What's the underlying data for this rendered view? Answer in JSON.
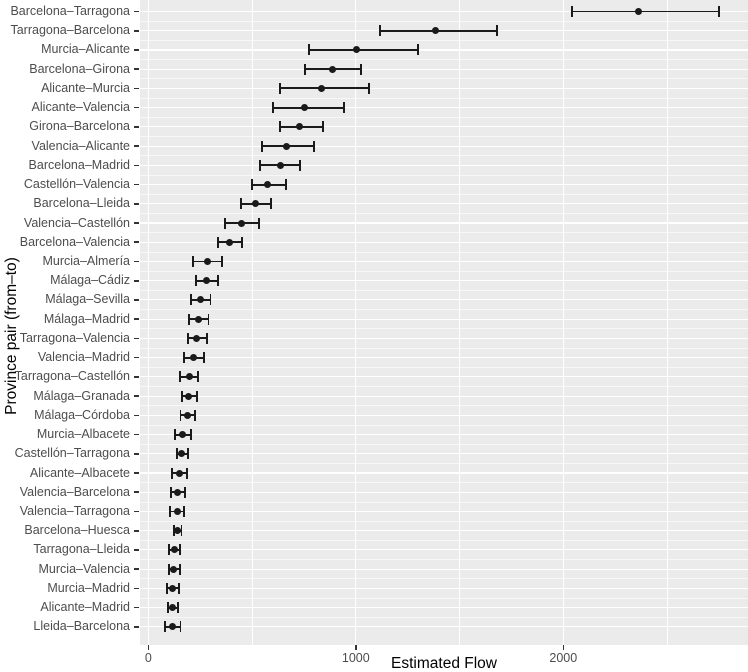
{
  "chart_data": {
    "type": "scatter",
    "subtype": "pointrange-errorbar",
    "title": "",
    "xlabel": "Estimated Flow",
    "ylabel": "Province pair (from–to)",
    "xlim": [
      -40,
      2890
    ],
    "x_ticks": [
      {
        "value": 0,
        "label": "0"
      },
      {
        "value": 1000,
        "label": "1000"
      },
      {
        "value": 2000,
        "label": "2000"
      }
    ],
    "x_minor_gridlines": [
      500,
      1500,
      2500
    ],
    "grid": "on",
    "legend_position": "none",
    "colors": {
      "panel_background": "#EBEBEB",
      "gridline": "#FFFFFF",
      "point_and_bar": "#1A1A1A",
      "axis_text": "#4D4D4D",
      "axis_title": "#000000",
      "tick_mark": "#333333"
    },
    "rows": [
      {
        "label": "Barcelona–Tarragona",
        "lo": 2040,
        "est": 2360,
        "hi": 2750
      },
      {
        "label": "Tarragona–Barcelona",
        "lo": 1115,
        "est": 1385,
        "hi": 1680
      },
      {
        "label": "Murcia–Alicante",
        "lo": 775,
        "est": 1005,
        "hi": 1300
      },
      {
        "label": "Barcelona–Girona",
        "lo": 755,
        "est": 890,
        "hi": 1025
      },
      {
        "label": "Alicante–Murcia",
        "lo": 635,
        "est": 835,
        "hi": 1065
      },
      {
        "label": "Alicante–Valencia",
        "lo": 600,
        "est": 755,
        "hi": 945
      },
      {
        "label": "Girona–Barcelona",
        "lo": 635,
        "est": 730,
        "hi": 840
      },
      {
        "label": "Valencia–Alicante",
        "lo": 550,
        "est": 665,
        "hi": 800
      },
      {
        "label": "Barcelona–Madrid",
        "lo": 540,
        "est": 635,
        "hi": 730
      },
      {
        "label": "Castellón–Valencia",
        "lo": 500,
        "est": 575,
        "hi": 665
      },
      {
        "label": "Barcelona–Lleida",
        "lo": 445,
        "est": 515,
        "hi": 590
      },
      {
        "label": "Valencia–Castellón",
        "lo": 370,
        "est": 450,
        "hi": 535
      },
      {
        "label": "Barcelona–Valencia",
        "lo": 335,
        "est": 390,
        "hi": 450
      },
      {
        "label": "Murcia–Almería",
        "lo": 215,
        "est": 285,
        "hi": 355
      },
      {
        "label": "Málaga–Cádiz",
        "lo": 230,
        "est": 280,
        "hi": 335
      },
      {
        "label": "Málaga–Sevilla",
        "lo": 205,
        "est": 250,
        "hi": 300
      },
      {
        "label": "Málaga–Madrid",
        "lo": 197,
        "est": 244,
        "hi": 290
      },
      {
        "label": "Tarragona–Valencia",
        "lo": 192,
        "est": 233,
        "hi": 285
      },
      {
        "label": "Valencia–Madrid",
        "lo": 171,
        "est": 218,
        "hi": 268
      },
      {
        "label": "Tarragona–Castellón",
        "lo": 154,
        "est": 197,
        "hi": 239
      },
      {
        "label": "Málaga–Granada",
        "lo": 163,
        "est": 195,
        "hi": 235
      },
      {
        "label": "Málaga–Córdoba",
        "lo": 155,
        "est": 188,
        "hi": 223
      },
      {
        "label": "Murcia–Albacete",
        "lo": 127,
        "est": 165,
        "hi": 204
      },
      {
        "label": "Castellón–Tarragona",
        "lo": 138,
        "est": 158,
        "hi": 191
      },
      {
        "label": "Alicante–Albacete",
        "lo": 115,
        "est": 150,
        "hi": 188
      },
      {
        "label": "Valencia–Barcelona",
        "lo": 110,
        "est": 143,
        "hi": 176
      },
      {
        "label": "Valencia–Tarragona",
        "lo": 106,
        "est": 140,
        "hi": 173
      },
      {
        "label": "Barcelona–Huesca",
        "lo": 122,
        "est": 139,
        "hi": 160
      },
      {
        "label": "Tarragona–Lleida",
        "lo": 98,
        "est": 125,
        "hi": 154
      },
      {
        "label": "Murcia–Valencia",
        "lo": 98,
        "est": 123,
        "hi": 151
      },
      {
        "label": "Murcia–Madrid",
        "lo": 91,
        "est": 119,
        "hi": 146
      },
      {
        "label": "Alicante–Madrid",
        "lo": 95,
        "est": 118,
        "hi": 143
      },
      {
        "label": "Lleida–Barcelona",
        "lo": 80,
        "est": 117,
        "hi": 155
      }
    ]
  }
}
